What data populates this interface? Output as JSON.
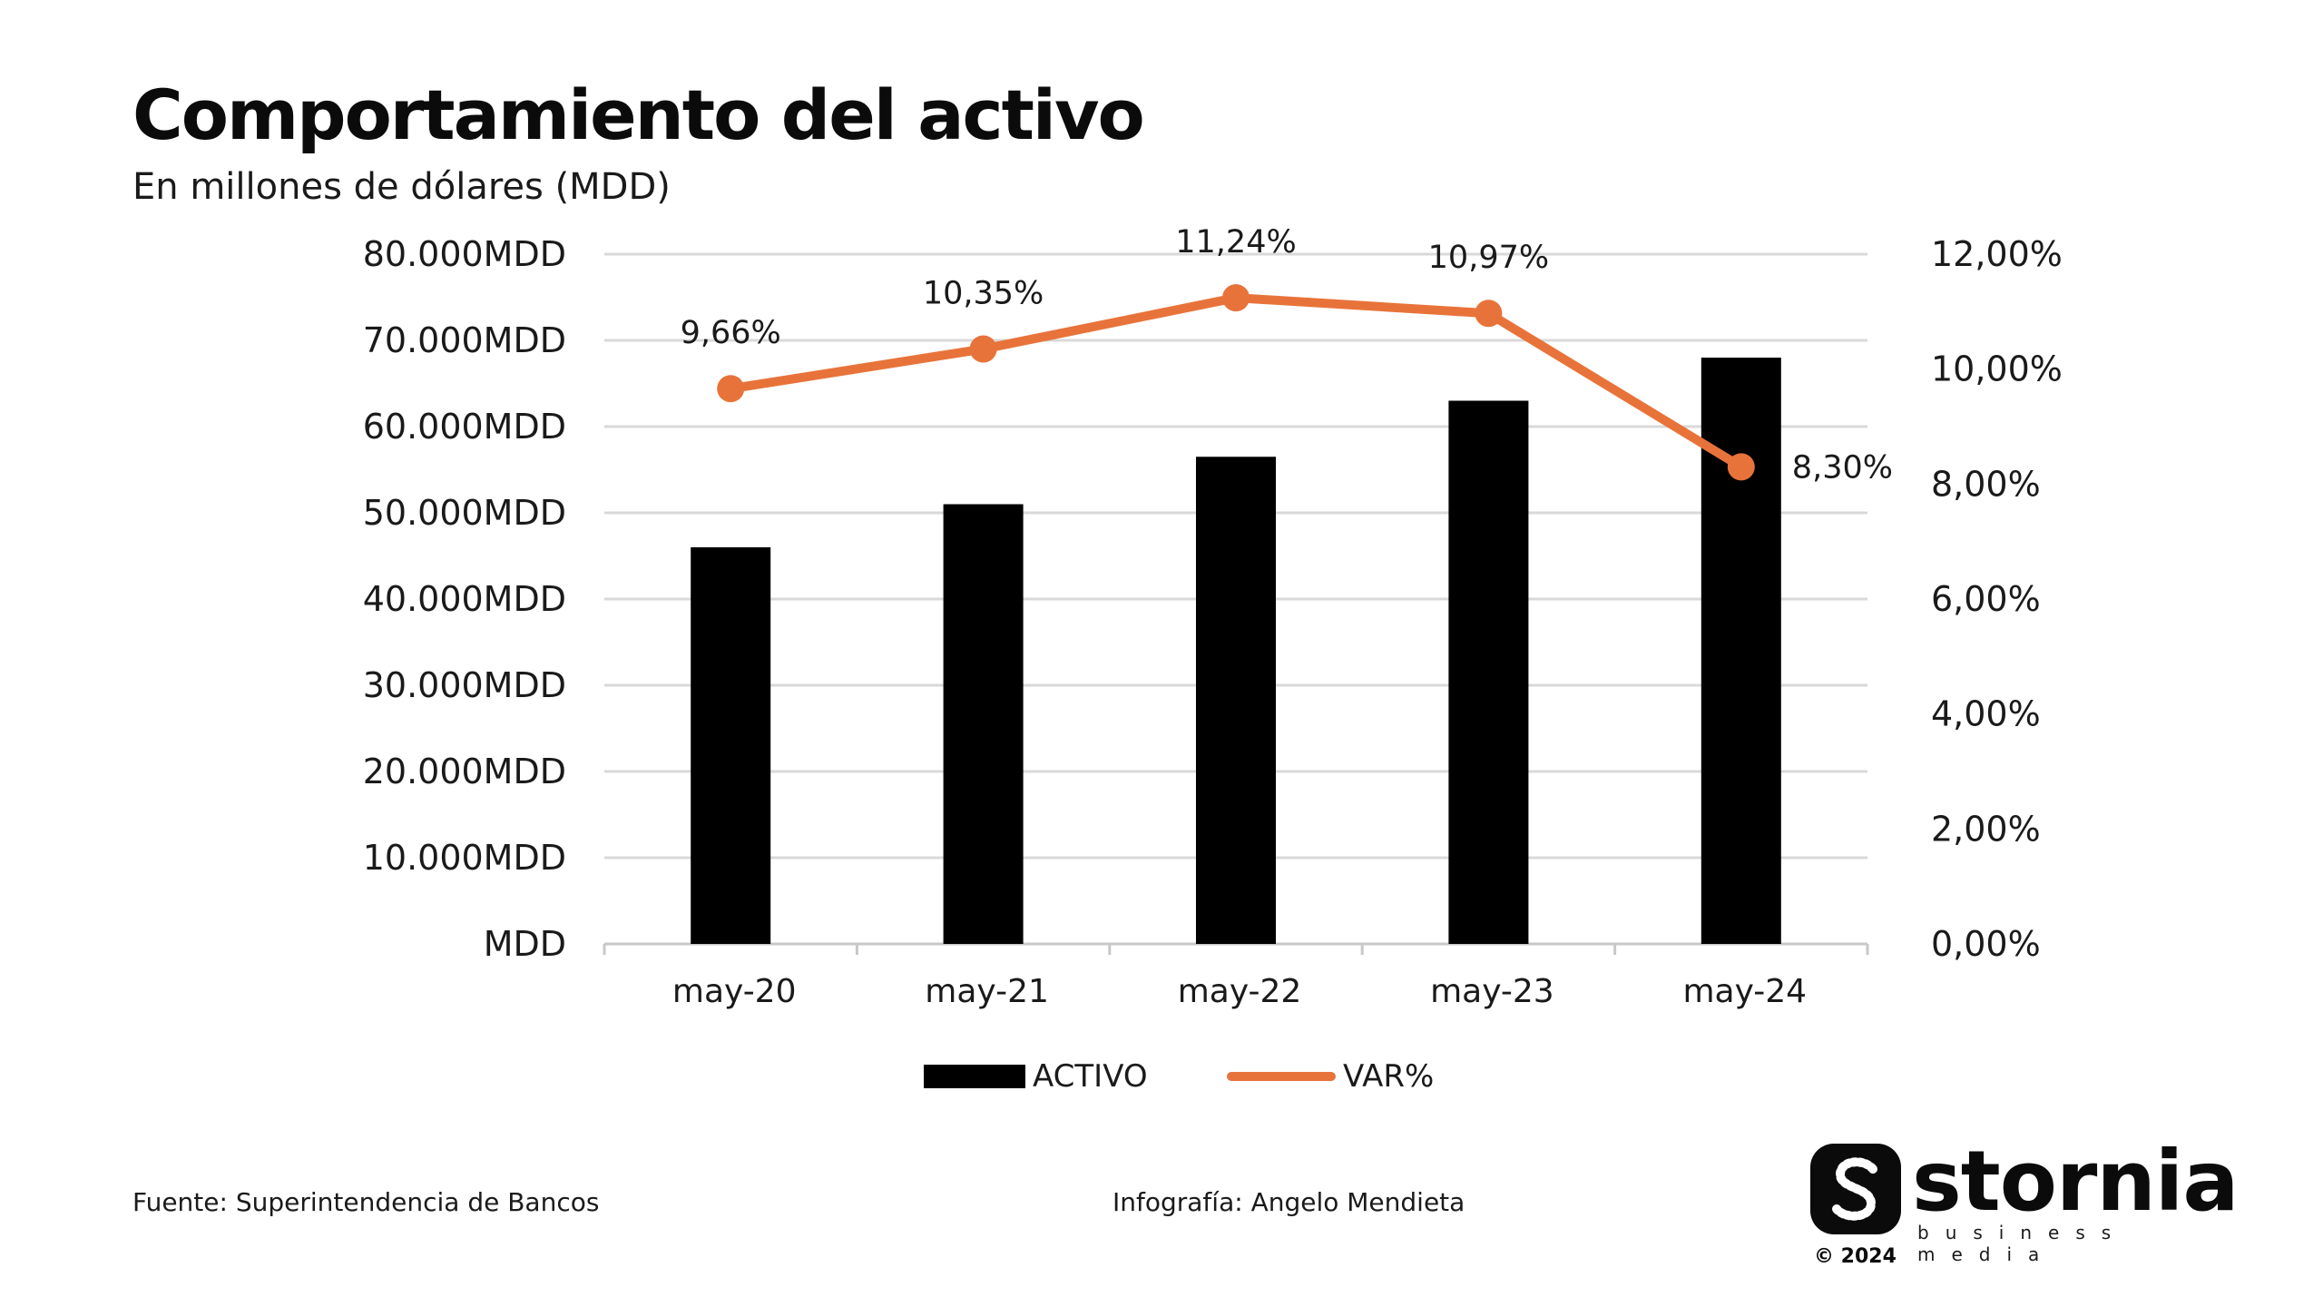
{
  "header": {
    "title": "Comportamiento del activo",
    "subtitle": "En millones de dólares (MDD)"
  },
  "chart_data": {
    "type": "bar",
    "categories": [
      "may-20",
      "may-21",
      "may-22",
      "may-23",
      "may-24"
    ],
    "series": [
      {
        "name": "ACTIVO",
        "type": "bar",
        "axis": "left",
        "values": [
          46000,
          51000,
          56500,
          63000,
          68000
        ],
        "color": "#000000"
      },
      {
        "name": "VAR%",
        "type": "line",
        "axis": "right",
        "values": [
          9.66,
          10.35,
          11.24,
          10.97,
          8.3
        ],
        "color": "#e8733a"
      }
    ],
    "data_labels": [
      "9,66%",
      "10,35%",
      "11,24%",
      "10,97%",
      "8,30%"
    ],
    "left_axis": {
      "ylim": [
        0,
        80000
      ],
      "ticks": [
        "MDD",
        "10.000MDD",
        "20.000MDD",
        "30.000MDD",
        "40.000MDD",
        "50.000MDD",
        "60.000MDD",
        "70.000MDD",
        "80.000MDD"
      ]
    },
    "right_axis": {
      "ylim": [
        0,
        12
      ],
      "ticks": [
        "0,00%",
        "2,00%",
        "4,00%",
        "6,00%",
        "8,00%",
        "10,00%",
        "12,00%"
      ]
    },
    "grid": true,
    "legend_position": "bottom"
  },
  "legend": {
    "bar_label": "ACTIVO",
    "line_label": "VAR%"
  },
  "footer": {
    "source": "Fuente: Superintendencia de Bancos",
    "credit": "Infografía: Angelo Mendieta"
  },
  "brand": {
    "name": "stornia",
    "tagline": "business media",
    "copyright": "© 2024",
    "icon": "stornia-logo-icon"
  },
  "colors": {
    "bar": "#000000",
    "line": "#e8733a",
    "grid": "#d9d9d9"
  }
}
